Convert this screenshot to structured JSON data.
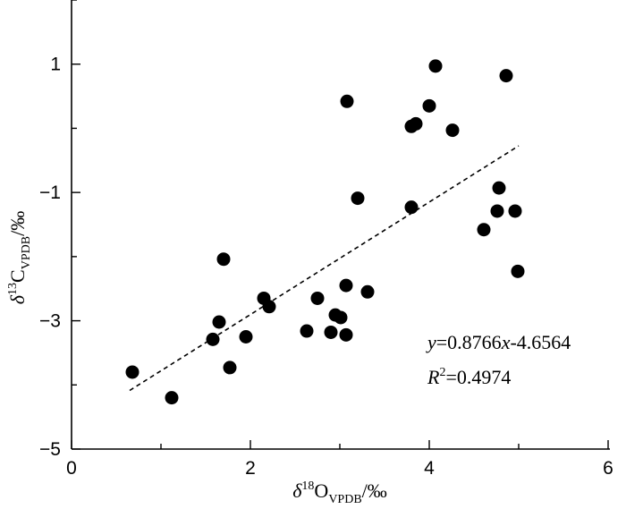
{
  "chart_data": {
    "type": "scatter",
    "xlabel": "δ18OVPDB/‰",
    "xlabel_parts": {
      "sym": "δ",
      "sup": "18",
      "main": "O",
      "sub": "VPDB",
      "unit": "/‰"
    },
    "ylabel": "δ13CVPDB/‰",
    "ylabel_parts": {
      "sym": "δ",
      "sup": "13",
      "main": "C",
      "sub": "VPDB",
      "unit": "/‰"
    },
    "xlim": [
      0,
      6
    ],
    "ylim": [
      -5,
      2
    ],
    "x_ticks": [
      0,
      2,
      4,
      6
    ],
    "y_ticks": [
      1,
      -1,
      -3,
      -5
    ],
    "x_tick_labels": [
      "0",
      "2",
      "4",
      "6"
    ],
    "y_tick_labels": [
      "1",
      "−1",
      "−3",
      "−5"
    ],
    "grid": false,
    "point_color": "#000000",
    "points": [
      {
        "x": 0.68,
        "y": -3.8
      },
      {
        "x": 1.12,
        "y": -4.2
      },
      {
        "x": 1.58,
        "y": -3.29
      },
      {
        "x": 1.65,
        "y": -3.02
      },
      {
        "x": 1.7,
        "y": -2.04
      },
      {
        "x": 1.77,
        "y": -3.73
      },
      {
        "x": 1.95,
        "y": -3.25
      },
      {
        "x": 2.15,
        "y": -2.65
      },
      {
        "x": 2.21,
        "y": -2.78
      },
      {
        "x": 2.63,
        "y": -3.16
      },
      {
        "x": 2.75,
        "y": -2.65
      },
      {
        "x": 2.9,
        "y": -3.18
      },
      {
        "x": 2.95,
        "y": -2.91
      },
      {
        "x": 3.01,
        "y": -2.95
      },
      {
        "x": 3.07,
        "y": -3.22
      },
      {
        "x": 3.07,
        "y": -2.45
      },
      {
        "x": 3.08,
        "y": 0.42
      },
      {
        "x": 3.2,
        "y": -1.09
      },
      {
        "x": 3.31,
        "y": -2.55
      },
      {
        "x": 3.8,
        "y": 0.03
      },
      {
        "x": 3.8,
        "y": -1.23
      },
      {
        "x": 3.85,
        "y": 0.07
      },
      {
        "x": 4.0,
        "y": 0.35
      },
      {
        "x": 4.07,
        "y": 0.97
      },
      {
        "x": 4.26,
        "y": -0.03
      },
      {
        "x": 4.61,
        "y": -1.58
      },
      {
        "x": 4.76,
        "y": -1.29
      },
      {
        "x": 4.78,
        "y": -0.93
      },
      {
        "x": 4.86,
        "y": 0.82
      },
      {
        "x": 4.96,
        "y": -1.29
      },
      {
        "x": 4.99,
        "y": -2.23
      }
    ],
    "trendline": {
      "slope": 0.8766,
      "intercept": -4.6564,
      "x_range": [
        0.68,
        5.0
      ],
      "style": "dashed"
    },
    "annotations": {
      "equation": {
        "y": "y",
        "eq": "=0.8766",
        "x": "x",
        "rest": "-4.6564"
      },
      "r2": {
        "R": "R",
        "sup": "2",
        "rest": "=0.4974"
      }
    }
  }
}
